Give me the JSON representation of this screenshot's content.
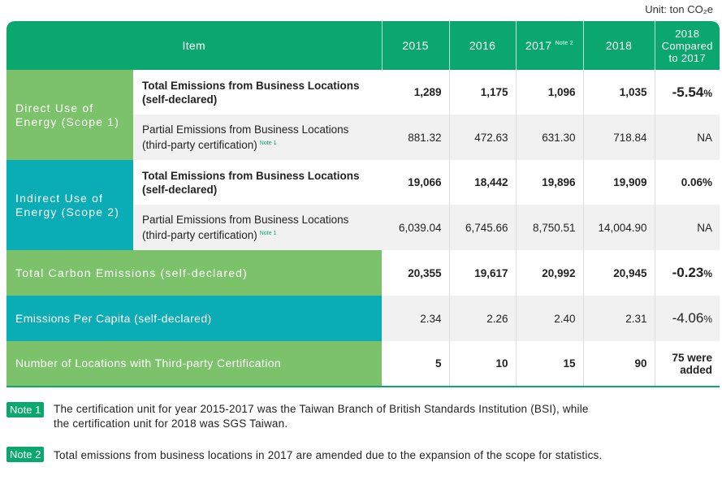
{
  "unit": "Unit: ton CO₂e",
  "header": {
    "item": "Item",
    "y2015": "2015",
    "y2016": "2016",
    "y2017": "2017",
    "y2017_note": "Note 2",
    "y2018": "2018",
    "compare_l1": "2018",
    "compare_l2": "Compared",
    "compare_l3": "to 2017"
  },
  "groups": {
    "scope1_l1": "Direct Use of",
    "scope1_l2": "Energy (Scope 1)",
    "scope2_l1": "Indirect Use of",
    "scope2_l2": "Energy (Scope 2)"
  },
  "rows": [
    {
      "label_l1": "Total Emissions from Business Locations",
      "label_l2": "(self-declared)",
      "v2015": "1,289",
      "v2016": "1,175",
      "v2017": "1,096",
      "v2018": "1,035",
      "cmp": "-5.54",
      "cmp_unit": "%"
    },
    {
      "label_l1": "Partial Emissions from Business Locations",
      "label_l2": "(third-party certification)",
      "note": "Note 1",
      "v2015": "881.32",
      "v2016": "472.63",
      "v2017": "631.30",
      "v2018": "718.84",
      "cmp": "NA"
    },
    {
      "label_l1": "Total Emissions from Business Locations",
      "label_l2": "(self-declared)",
      "v2015": "19,066",
      "v2016": "18,442",
      "v2017": "19,896",
      "v2018": "19,909",
      "cmp": "0.06%"
    },
    {
      "label_l1": "Partial Emissions from Business Locations",
      "label_l2": "(third-party certification)",
      "note": "Note 1",
      "v2015": "6,039.04",
      "v2016": "6,745.66",
      "v2017": "8,750.51",
      "v2018": "14,004.90",
      "cmp": "NA"
    },
    {
      "label": "Total Carbon Emissions (self-declared)",
      "v2015": "20,355",
      "v2016": "19,617",
      "v2017": "20,992",
      "v2018": "20,945",
      "cmp": "-0.23",
      "cmp_unit": "%"
    },
    {
      "label": "Emissions Per Capita (self-declared)",
      "v2015": "2.34",
      "v2016": "2.26",
      "v2017": "2.40",
      "v2018": "2.31",
      "cmp": "-4.06",
      "cmp_unit": "%"
    },
    {
      "label": "Number of Locations with Third-party Certification",
      "v2015": "5",
      "v2016": "10",
      "v2017": "15",
      "v2018": "90",
      "cmp_l1": "75 were",
      "cmp_l2": "added"
    }
  ],
  "notes": [
    {
      "tag": "Note 1",
      "line1": "The certification unit for year 2015-2017 was the Taiwan Branch of British Standards Institution (BSI), while",
      "line2": "the certification unit for 2018 was SGS Taiwan."
    },
    {
      "tag": "Note 2",
      "line1": "Total emissions from business locations in 2017 are amended due to the expansion of the scope for statistics."
    }
  ],
  "colors": {
    "header": "#0aa86f",
    "green": "#7cc26a",
    "teal": "#0aacb5"
  }
}
